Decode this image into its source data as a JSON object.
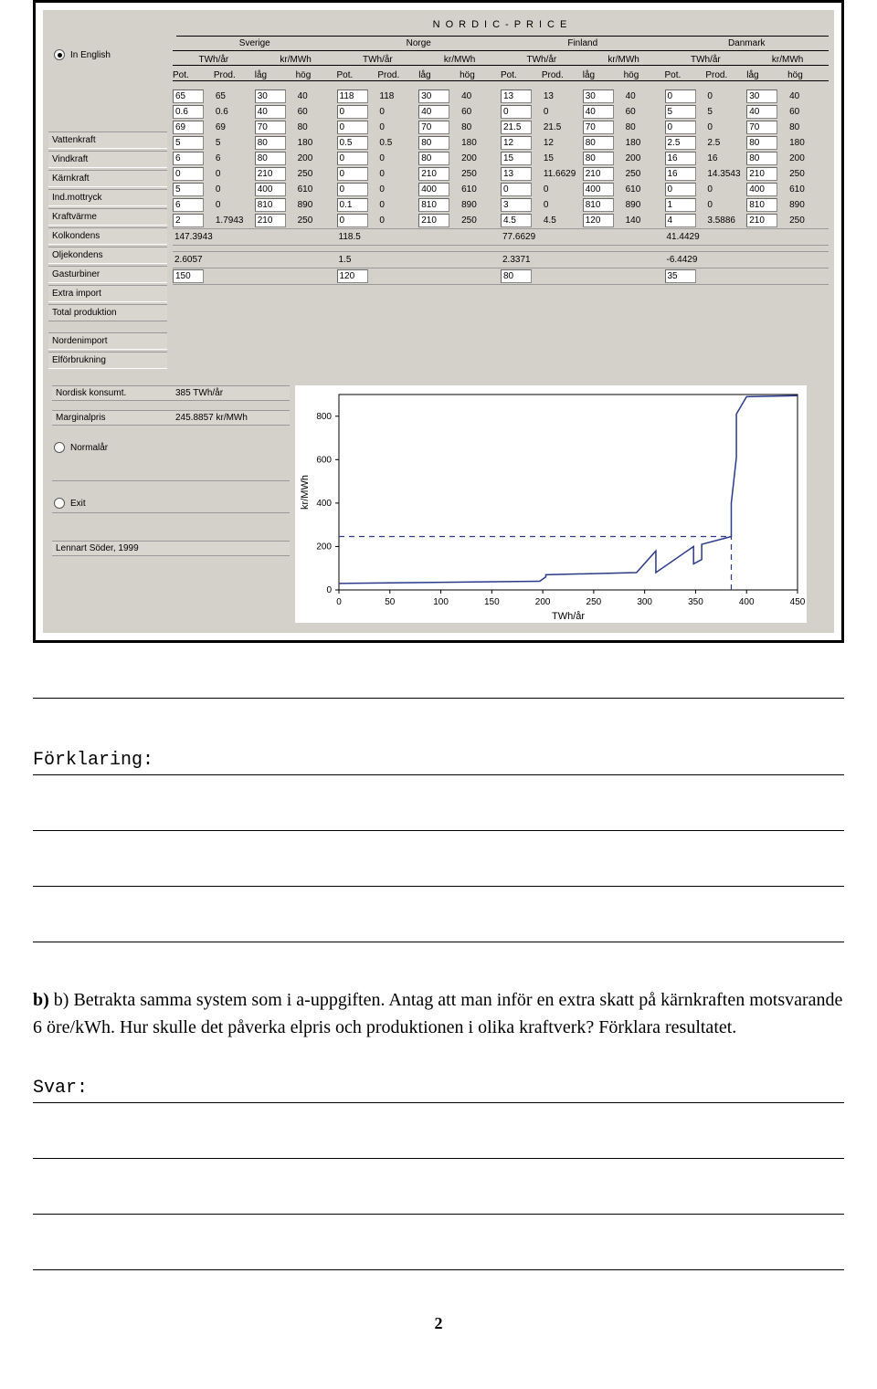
{
  "app": {
    "title": "NORDIC-PRICE",
    "radio_english": "In English",
    "radio_normalar": "Normalår",
    "radio_exit": "Exit",
    "credit": "Lennart Söder, 1999",
    "countries": [
      "Sverige",
      "Norge",
      "Finland",
      "Danmark"
    ],
    "unit_headers": [
      "TWh/år",
      "kr/MWh",
      "TWh/år",
      "kr/MWh",
      "TWh/år",
      "kr/MWh",
      "TWh/år",
      "kr/MWh"
    ],
    "sub_headers": [
      "Pot.",
      "Prod.",
      "låg",
      "hög",
      "Pot.",
      "Prod.",
      "låg",
      "hög",
      "Pot.",
      "Prod.",
      "låg",
      "hög",
      "Pot.",
      "Prod.",
      "låg",
      "hög"
    ],
    "row_labels": [
      "Vattenkraft",
      "Vindkraft",
      "Kärnkraft",
      "Ind.mottryck",
      "Kraftvärme",
      "Kolkondens",
      "Oljekondens",
      "Gasturbiner",
      "Extra import"
    ],
    "rows": [
      [
        [
          "65",
          "65"
        ],
        [
          "30",
          "40"
        ],
        [
          "118",
          "118"
        ],
        [
          "30",
          "40"
        ],
        [
          "13",
          "13"
        ],
        [
          "30",
          "40"
        ],
        [
          "0",
          "0"
        ],
        [
          "30",
          "40"
        ]
      ],
      [
        [
          "0.6",
          "0.6"
        ],
        [
          "40",
          "60"
        ],
        [
          "0",
          "0"
        ],
        [
          "40",
          "60"
        ],
        [
          "0",
          "0"
        ],
        [
          "40",
          "60"
        ],
        [
          "5",
          "5"
        ],
        [
          "40",
          "60"
        ]
      ],
      [
        [
          "69",
          "69"
        ],
        [
          "70",
          "80"
        ],
        [
          "0",
          "0"
        ],
        [
          "70",
          "80"
        ],
        [
          "21.5",
          "21.5"
        ],
        [
          "70",
          "80"
        ],
        [
          "0",
          "0"
        ],
        [
          "70",
          "80"
        ]
      ],
      [
        [
          "5",
          "5"
        ],
        [
          "80",
          "180"
        ],
        [
          "0.5",
          "0.5"
        ],
        [
          "80",
          "180"
        ],
        [
          "12",
          "12"
        ],
        [
          "80",
          "180"
        ],
        [
          "2.5",
          "2.5"
        ],
        [
          "80",
          "180"
        ]
      ],
      [
        [
          "6",
          "6"
        ],
        [
          "80",
          "200"
        ],
        [
          "0",
          "0"
        ],
        [
          "80",
          "200"
        ],
        [
          "15",
          "15"
        ],
        [
          "80",
          "200"
        ],
        [
          "16",
          "16"
        ],
        [
          "80",
          "200"
        ]
      ],
      [
        [
          "0",
          "0"
        ],
        [
          "210",
          "250"
        ],
        [
          "0",
          "0"
        ],
        [
          "210",
          "250"
        ],
        [
          "13",
          "11.6629"
        ],
        [
          "210",
          "250"
        ],
        [
          "16",
          "14.3543"
        ],
        [
          "210",
          "250"
        ]
      ],
      [
        [
          "5",
          "0"
        ],
        [
          "400",
          "610"
        ],
        [
          "0",
          "0"
        ],
        [
          "400",
          "610"
        ],
        [
          "0",
          "0"
        ],
        [
          "400",
          "610"
        ],
        [
          "0",
          "0"
        ],
        [
          "400",
          "610"
        ]
      ],
      [
        [
          "6",
          "0"
        ],
        [
          "810",
          "890"
        ],
        [
          "0.1",
          "0"
        ],
        [
          "810",
          "890"
        ],
        [
          "3",
          "0"
        ],
        [
          "810",
          "890"
        ],
        [
          "1",
          "0"
        ],
        [
          "810",
          "890"
        ]
      ],
      [
        [
          "2",
          "1.7943"
        ],
        [
          "210",
          "250"
        ],
        [
          "0",
          "0"
        ],
        [
          "210",
          "250"
        ],
        [
          "4.5",
          "4.5"
        ],
        [
          "120",
          "140"
        ],
        [
          "4",
          "3.5886"
        ],
        [
          "210",
          "250"
        ]
      ]
    ],
    "total_label": "Total produktion",
    "totals": [
      "147.3943",
      "118.5",
      "77.6629",
      "41.4429"
    ],
    "norden_label": "Nordenimport",
    "norden": [
      "2.6057",
      "1.5",
      "2.3371",
      "-6.4429"
    ],
    "elforbr_label": "Elförbrukning",
    "elforbr": [
      "150",
      "120",
      "80",
      "35"
    ],
    "nordisk_label": "Nordisk konsumt.",
    "nordisk_val": "385 TWh/år",
    "marg_label": "Marginalpris",
    "marg_val": "245.8857 kr/MWh"
  },
  "chart": {
    "type": "line",
    "xlabel": "TWh/år",
    "ylabel": "kr/MWh",
    "xlim": [
      0,
      450
    ],
    "ylim": [
      0,
      900
    ],
    "xticks": [
      0,
      50,
      100,
      150,
      200,
      250,
      300,
      350,
      400,
      450
    ],
    "yticks": [
      0,
      200,
      400,
      600,
      800
    ],
    "line_color": "#2a3a8a",
    "dash_color": "#2a3a8a",
    "background_color": "#ffffff",
    "axis_color": "#000000",
    "series": [
      {
        "x": 0,
        "y": 30
      },
      {
        "x": 196,
        "y": 40
      },
      {
        "x": 196,
        "y": 45
      },
      {
        "x": 201,
        "y": 62
      },
      {
        "x": 201,
        "y": 70
      },
      {
        "x": 292,
        "y": 80
      },
      {
        "x": 292,
        "y": 80
      },
      {
        "x": 310,
        "y": 180
      },
      {
        "x": 310,
        "y": 85
      },
      {
        "x": 347,
        "y": 200
      },
      {
        "x": 347,
        "y": 120
      },
      {
        "x": 356,
        "y": 140
      },
      {
        "x": 356,
        "y": 210
      },
      {
        "x": 385,
        "y": 250
      },
      {
        "x": 385,
        "y": 400
      },
      {
        "x": 390,
        "y": 610
      },
      {
        "x": 390,
        "y": 810
      },
      {
        "x": 400,
        "y": 890
      }
    ],
    "supply_curve": [
      [
        0,
        30
      ],
      [
        196,
        40
      ],
      [
        197,
        40
      ],
      [
        203,
        60
      ],
      [
        203,
        70
      ],
      [
        292,
        80
      ],
      [
        292,
        80
      ],
      [
        311,
        180
      ],
      [
        311,
        80
      ],
      [
        348,
        200
      ],
      [
        348,
        120
      ],
      [
        356,
        140
      ],
      [
        356,
        210
      ],
      [
        385,
        246
      ],
      [
        385,
        400
      ],
      [
        390,
        610
      ],
      [
        390,
        810
      ],
      [
        400,
        890
      ],
      [
        450,
        895
      ]
    ],
    "demand_x": 385,
    "price_y": 246
  },
  "doc": {
    "forklaring": "Förklaring:",
    "b_text": "b) Betrakta samma system som i a-uppgiften. Antag att man inför en extra skatt på kärnkraften motsvarande 6 öre/kWh. Hur skulle det påverka elpris och produktionen i olika kraftverk? Förklara resultatet.",
    "svar": "Svar:",
    "page": "2"
  }
}
